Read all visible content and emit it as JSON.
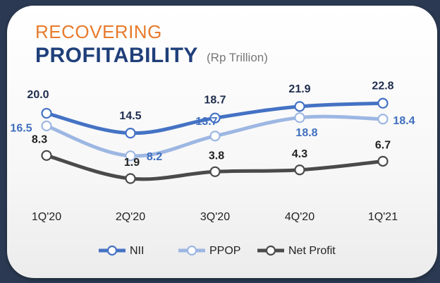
{
  "header": {
    "title_line1": "RECOVERING",
    "title_line2": "PROFITABILITY",
    "unit": "(Rp Trillion)"
  },
  "chart_data": {
    "type": "line",
    "title": "RECOVERING PROFITABILITY",
    "unit": "(Rp Trillion)",
    "categories": [
      "1Q'20",
      "2Q'20",
      "3Q'20",
      "4Q'20",
      "1Q'21"
    ],
    "series": [
      {
        "name": "NII",
        "values": [
          20.0,
          14.5,
          18.7,
          21.9,
          22.8
        ],
        "labels": [
          "20.0",
          "14.5",
          "18.7",
          "21.9",
          "22.8"
        ],
        "color": "#4472c4",
        "label_color": "#1f2d4d"
      },
      {
        "name": "PPOP",
        "values": [
          16.5,
          8.2,
          13.7,
          18.8,
          18.4
        ],
        "labels": [
          "16.5",
          "8.2",
          "13.7",
          "18.8",
          "18.4"
        ],
        "color": "#9db7e3",
        "label_color": "#3f6fbf"
      },
      {
        "name": "Net Profit",
        "values": [
          8.3,
          1.9,
          3.8,
          4.3,
          6.7
        ],
        "labels": [
          "8.3",
          "1.9",
          "3.8",
          "4.3",
          "6.7"
        ],
        "color": "#4a4a4a",
        "label_color": "#222222"
      }
    ],
    "legend": "bottom",
    "grid": false
  }
}
